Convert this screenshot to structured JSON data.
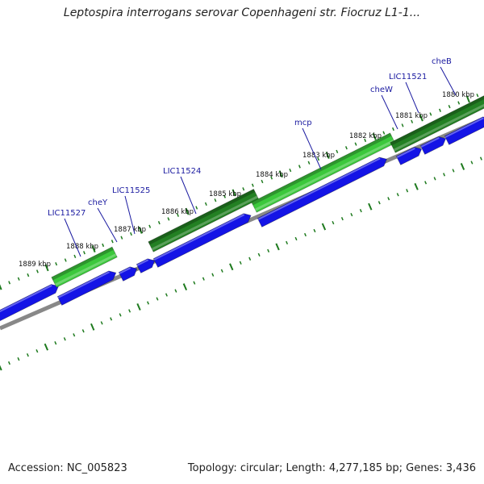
{
  "title": "Leptospira interrogans serovar Copenhageni str. Fiocruz L1-1...",
  "footer": {
    "accession": "Accession: NC_005823",
    "summary": "Topology: circular; Length: 4,277,185 bp; Genes: 3,436"
  },
  "colors": {
    "forward_gene": "#3cc83c",
    "forward_gene_dark": "#238023",
    "reverse_gene": "#1414e6",
    "backbone": "#888888",
    "gene_label": "#1a1aa0",
    "tick": "#1e7a1e"
  },
  "ruler": {
    "unit": "kbp",
    "labels": [
      "1889 kbp",
      "1888 kbp",
      "1887 kbp",
      "1886 kbp",
      "1885 kbp",
      "1884 kbp",
      "1883 kbp",
      "1882 kbp",
      "1881 kbp",
      "1880 kbp"
    ]
  },
  "genes": [
    {
      "name": "LIC11527"
    },
    {
      "name": "cheY"
    },
    {
      "name": "LIC11525"
    },
    {
      "name": "LIC11524"
    },
    {
      "name": "mcp"
    },
    {
      "name": "cheW"
    },
    {
      "name": "LIC11521"
    },
    {
      "name": "cheB"
    }
  ]
}
